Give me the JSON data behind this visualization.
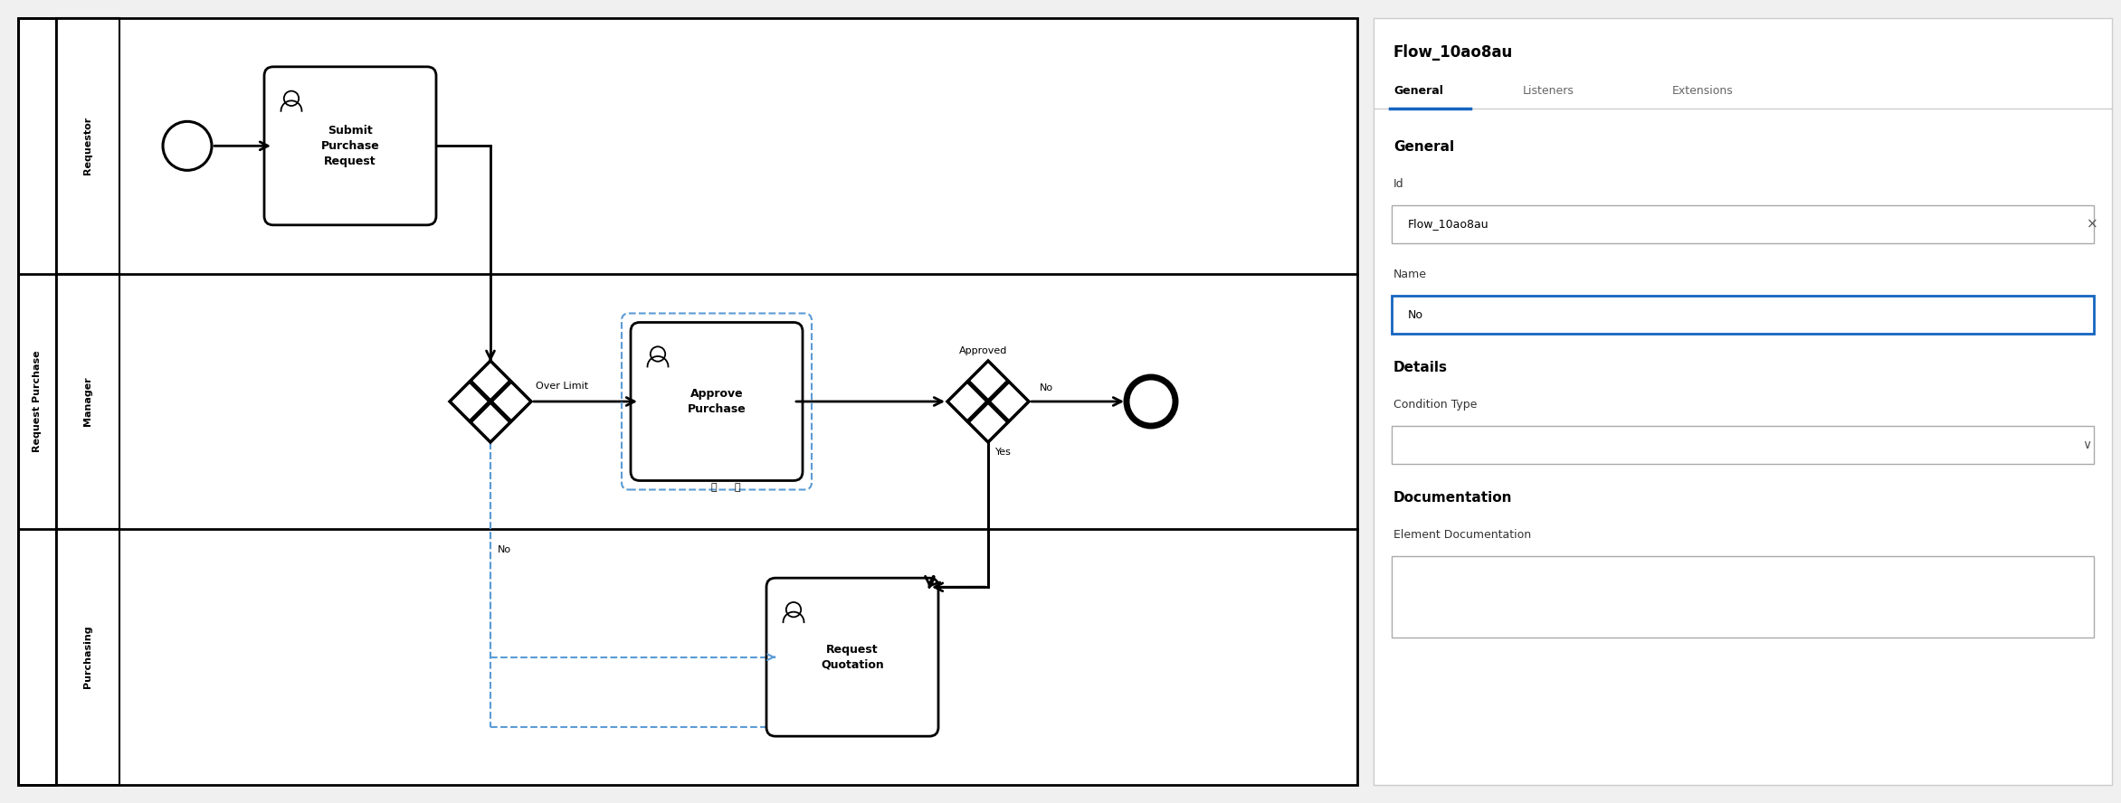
{
  "bg_color": "#f0f0f0",
  "diagram_bg": "#ffffff",
  "panel_bg": "#ffffff",
  "panel_title": "Flow_10ao8au",
  "panel_id_label": "Id",
  "panel_id_value": "Flow_10ao8au",
  "panel_name_label": "Name",
  "panel_name_value": "No",
  "panel_tabs": [
    "General",
    "Listeners",
    "Extensions"
  ],
  "panel_active_tab": "General",
  "panel_general_label": "General",
  "panel_details_label": "Details",
  "panel_condition_type": "Condition Type",
  "panel_documentation": "Documentation",
  "panel_element_doc": "Element Documentation",
  "swim_lanes": [
    "Requestor",
    "Manager",
    "Purchasing"
  ],
  "swim_lane_group": "Request Purchase",
  "border_color": "#000000",
  "dashed_color": "#5b9bd5",
  "panel_separator_color": "#cccccc",
  "active_tab_color": "#1565c0",
  "input_border_color": "#aaaaaa",
  "active_input_color": "#1565c0"
}
